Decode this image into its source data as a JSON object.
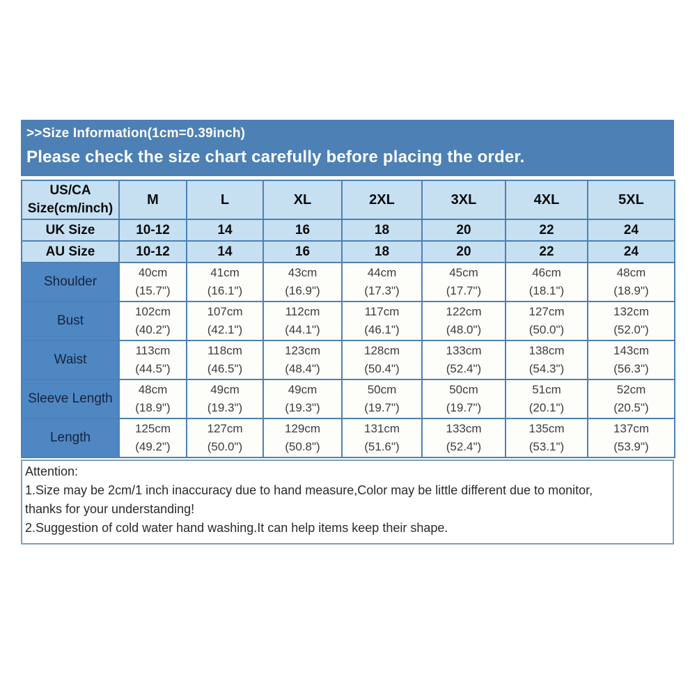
{
  "banner": {
    "line1": ">>Size Information(1cm=0.39inch)",
    "line2": "Please check the size chart carefully before placing the order."
  },
  "size_table": {
    "corner_header_line1": "US/CA",
    "corner_header_line2": "Size(cm/inch)",
    "size_labels": [
      "M",
      "L",
      "XL",
      "2XL",
      "3XL",
      "4XL",
      "5XL"
    ],
    "uk_row": {
      "label": "UK Size",
      "values": [
        "10-12",
        "14",
        "16",
        "18",
        "20",
        "22",
        "24"
      ]
    },
    "au_row": {
      "label": "AU Size",
      "values": [
        "10-12",
        "14",
        "16",
        "18",
        "20",
        "22",
        "24"
      ]
    },
    "measurement_rows": [
      {
        "label": "Shoulder",
        "values": [
          {
            "cm": "40cm",
            "inch": "(15.7\")"
          },
          {
            "cm": "41cm",
            "inch": "(16.1\")"
          },
          {
            "cm": "43cm",
            "inch": "(16.9\")"
          },
          {
            "cm": "44cm",
            "inch": "(17.3\")"
          },
          {
            "cm": "45cm",
            "inch": "(17.7\")"
          },
          {
            "cm": "46cm",
            "inch": "(18.1\")"
          },
          {
            "cm": "48cm",
            "inch": "(18.9\")"
          }
        ]
      },
      {
        "label": "Bust",
        "values": [
          {
            "cm": "102cm",
            "inch": "(40.2\")"
          },
          {
            "cm": "107cm",
            "inch": "(42.1\")"
          },
          {
            "cm": "112cm",
            "inch": "(44.1\")"
          },
          {
            "cm": "117cm",
            "inch": "(46.1\")"
          },
          {
            "cm": "122cm",
            "inch": "(48.0\")"
          },
          {
            "cm": "127cm",
            "inch": "(50.0\")"
          },
          {
            "cm": "132cm",
            "inch": "(52.0\")"
          }
        ]
      },
      {
        "label": "Waist",
        "values": [
          {
            "cm": "113cm",
            "inch": "(44.5\")"
          },
          {
            "cm": "118cm",
            "inch": "(46.5\")"
          },
          {
            "cm": "123cm",
            "inch": "(48.4\")"
          },
          {
            "cm": "128cm",
            "inch": "(50.4\")"
          },
          {
            "cm": "133cm",
            "inch": "(52.4\")"
          },
          {
            "cm": "138cm",
            "inch": "(54.3\")"
          },
          {
            "cm": "143cm",
            "inch": "(56.3\")"
          }
        ]
      },
      {
        "label": "Sleeve Length",
        "values": [
          {
            "cm": "48cm",
            "inch": "(18.9\")"
          },
          {
            "cm": "49cm",
            "inch": "(19.3\")"
          },
          {
            "cm": "49cm",
            "inch": "(19.3\")"
          },
          {
            "cm": "50cm",
            "inch": "(19.7\")"
          },
          {
            "cm": "50cm",
            "inch": "(19.7\")"
          },
          {
            "cm": "51cm",
            "inch": "(20.1\")"
          },
          {
            "cm": "52cm",
            "inch": "(20.5\")"
          }
        ]
      },
      {
        "label": "Length",
        "values": [
          {
            "cm": "125cm",
            "inch": "(49.2\")"
          },
          {
            "cm": "127cm",
            "inch": "(50.0\")"
          },
          {
            "cm": "129cm",
            "inch": "(50.8\")"
          },
          {
            "cm": "131cm",
            "inch": "(51.6\")"
          },
          {
            "cm": "133cm",
            "inch": "(52.4\")"
          },
          {
            "cm": "135cm",
            "inch": "(53.1\")"
          },
          {
            "cm": "137cm",
            "inch": "(53.9\")"
          }
        ]
      }
    ]
  },
  "attention": {
    "title": "Attention:",
    "lines": [
      "1.Size may be 2cm/1 inch inaccuracy due to hand measure,Color may be little different due to monitor,",
      "thanks for your understanding!",
      "2.Suggestion of cold water hand washing.It can help items keep their shape."
    ]
  },
  "colors": {
    "banner_bg": "#4d80b5",
    "header_cell_bg": "#c6e0f2",
    "label_cell_bg": "#4f87c2",
    "data_cell_bg": "#fdfdfa",
    "grid_border": "#4d80b5",
    "attention_border": "#7f9db9"
  }
}
